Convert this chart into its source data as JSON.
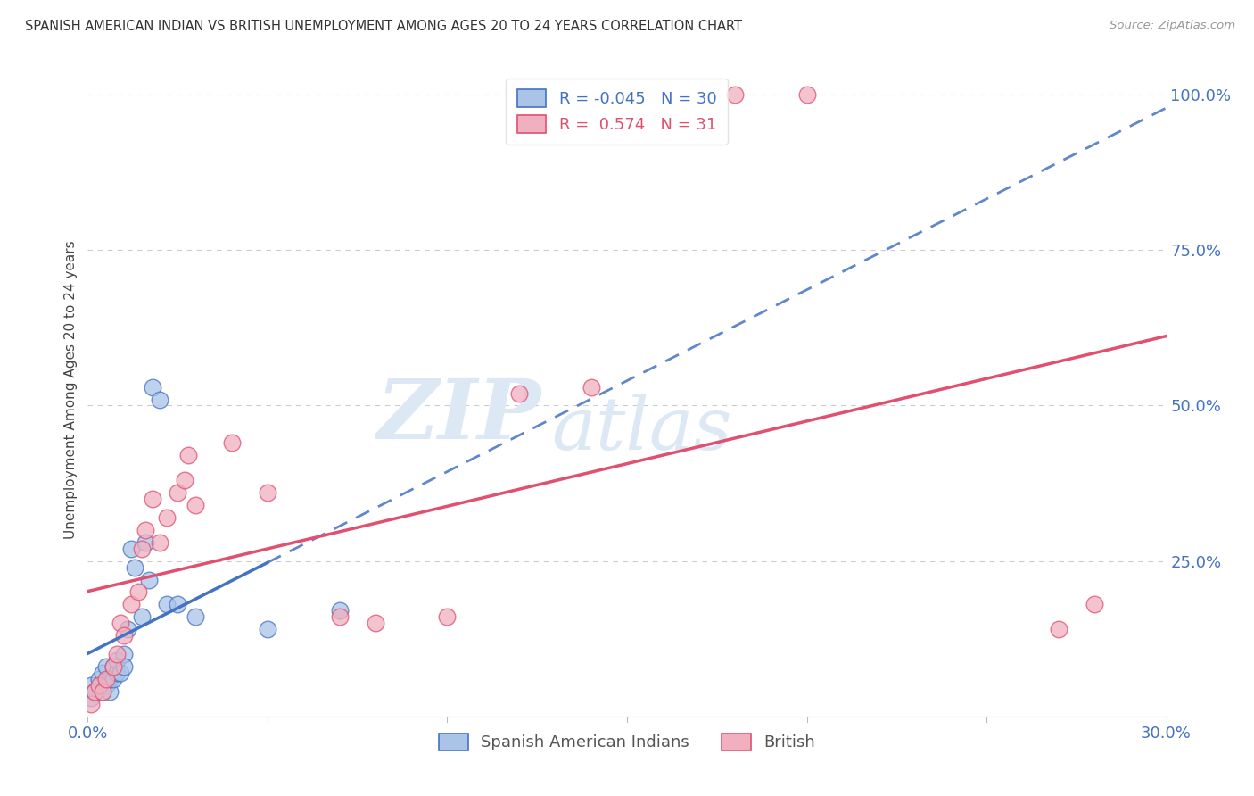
{
  "title": "SPANISH AMERICAN INDIAN VS BRITISH UNEMPLOYMENT AMONG AGES 20 TO 24 YEARS CORRELATION CHART",
  "source": "Source: ZipAtlas.com",
  "ylabel": "Unemployment Among Ages 20 to 24 years",
  "legend_bottom": [
    "Spanish American Indians",
    "British"
  ],
  "blue_scatter_x": [
    0.001,
    0.001,
    0.002,
    0.003,
    0.004,
    0.004,
    0.005,
    0.005,
    0.006,
    0.006,
    0.007,
    0.007,
    0.008,
    0.008,
    0.009,
    0.01,
    0.01,
    0.011,
    0.012,
    0.013,
    0.015,
    0.016,
    0.017,
    0.018,
    0.02,
    0.022,
    0.025,
    0.03,
    0.05,
    0.07
  ],
  "blue_scatter_y": [
    0.03,
    0.05,
    0.04,
    0.06,
    0.04,
    0.07,
    0.05,
    0.08,
    0.04,
    0.06,
    0.06,
    0.08,
    0.07,
    0.09,
    0.07,
    0.1,
    0.08,
    0.14,
    0.27,
    0.24,
    0.16,
    0.28,
    0.22,
    0.53,
    0.51,
    0.18,
    0.18,
    0.16,
    0.14,
    0.17
  ],
  "pink_scatter_x": [
    0.001,
    0.002,
    0.003,
    0.004,
    0.005,
    0.007,
    0.008,
    0.009,
    0.01,
    0.012,
    0.014,
    0.015,
    0.016,
    0.018,
    0.02,
    0.022,
    0.025,
    0.027,
    0.028,
    0.03,
    0.04,
    0.05,
    0.07,
    0.08,
    0.1,
    0.12,
    0.14,
    0.18,
    0.2,
    0.27,
    0.28
  ],
  "pink_scatter_y": [
    0.02,
    0.04,
    0.05,
    0.04,
    0.06,
    0.08,
    0.1,
    0.15,
    0.13,
    0.18,
    0.2,
    0.27,
    0.3,
    0.35,
    0.28,
    0.32,
    0.36,
    0.38,
    0.42,
    0.34,
    0.44,
    0.36,
    0.16,
    0.15,
    0.16,
    0.52,
    0.53,
    1.0,
    1.0,
    0.14,
    0.18
  ],
  "blue_line_color": "#4472c4",
  "pink_line_color": "#e05070",
  "blue_scatter_color": "#aac4e8",
  "pink_scatter_color": "#f0b0c0",
  "watermark_zip": "ZIP",
  "watermark_atlas": "atlas",
  "xlim": [
    0.0,
    0.3
  ],
  "ylim": [
    0.0,
    1.05
  ],
  "right_yticks": [
    1.0,
    0.75,
    0.5,
    0.25
  ],
  "right_ytick_labels": [
    "100.0%",
    "75.0%",
    "50.0%",
    "25.0%"
  ],
  "xtick_labels": [
    "0.0%",
    "30.0%"
  ],
  "tick_color": "#4472c4",
  "grid_color": "#cccccc",
  "legend_r1": "R = -0.045",
  "legend_n1": "N = 30",
  "legend_r2": "R =  0.574",
  "legend_n2": "N = 31"
}
